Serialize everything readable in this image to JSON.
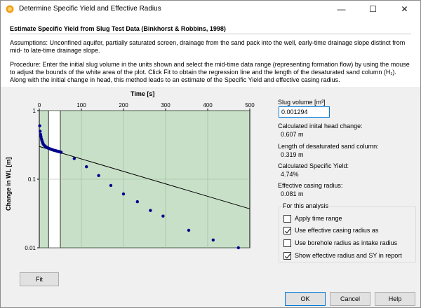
{
  "window": {
    "title": "Determine Specific Yield and Effective Radius",
    "controls": {
      "minimize": "—",
      "maximize": "☐",
      "close": "✕"
    }
  },
  "header": {
    "heading": "Estimate Specific Yield from Slug Test Data (Binkhorst & Robbins, 1998)",
    "assumptions": "Assumptions: Unconfined aquifer, partially saturated screen, drainage from the sand pack into the well, early-time drainage slope distinct from mid- to late-time drainage slope.",
    "procedure": "Procedure: Enter the initial slug volume in the units shown and select the mid-time data range (representing formation flow) by using the mouse to adjust the bounds of the white area of the plot. Click Fit to obtain the regression line and the length of the desaturated sand column (H₁). Along with the initial change in head, this method leads to an estimate of the Specific Yield and effective casing radius."
  },
  "chart_data": {
    "type": "scatter",
    "xlabel": "Time [s]",
    "ylabel": "Change in WL [m]",
    "xlim": [
      0,
      500
    ],
    "ylim": [
      0.01,
      1
    ],
    "y_scale": "log",
    "x_ticks": [
      "0",
      "100",
      "200",
      "300",
      "400",
      "500"
    ],
    "y_ticks": [
      "1",
      "0.1",
      "0.01"
    ],
    "background_color": "#c8e0c8",
    "selection_range": [
      22,
      50
    ],
    "point_color": "#00008b",
    "line_color": "#000000",
    "points": [
      {
        "x": 1,
        "y": 0.6
      },
      {
        "x": 2,
        "y": 0.5
      },
      {
        "x": 3,
        "y": 0.45
      },
      {
        "x": 4,
        "y": 0.42
      },
      {
        "x": 5,
        "y": 0.39
      },
      {
        "x": 6,
        "y": 0.37
      },
      {
        "x": 7,
        "y": 0.355
      },
      {
        "x": 8,
        "y": 0.34
      },
      {
        "x": 9,
        "y": 0.33
      },
      {
        "x": 10,
        "y": 0.32
      },
      {
        "x": 12,
        "y": 0.31
      },
      {
        "x": 14,
        "y": 0.302
      },
      {
        "x": 16,
        "y": 0.296
      },
      {
        "x": 18,
        "y": 0.29
      },
      {
        "x": 20,
        "y": 0.286
      },
      {
        "x": 22,
        "y": 0.282
      },
      {
        "x": 24,
        "y": 0.279
      },
      {
        "x": 26,
        "y": 0.276
      },
      {
        "x": 28,
        "y": 0.273
      },
      {
        "x": 30,
        "y": 0.27
      },
      {
        "x": 32,
        "y": 0.268
      },
      {
        "x": 34,
        "y": 0.265
      },
      {
        "x": 36,
        "y": 0.263
      },
      {
        "x": 38,
        "y": 0.261
      },
      {
        "x": 40,
        "y": 0.259
      },
      {
        "x": 42,
        "y": 0.257
      },
      {
        "x": 44,
        "y": 0.255
      },
      {
        "x": 46,
        "y": 0.253
      },
      {
        "x": 48,
        "y": 0.251
      },
      {
        "x": 50,
        "y": 0.249
      },
      {
        "x": 52,
        "y": 0.247
      },
      {
        "x": 83,
        "y": 0.2
      },
      {
        "x": 112,
        "y": 0.152
      },
      {
        "x": 141,
        "y": 0.113
      },
      {
        "x": 170,
        "y": 0.081
      },
      {
        "x": 200,
        "y": 0.061
      },
      {
        "x": 233,
        "y": 0.047
      },
      {
        "x": 264,
        "y": 0.035
      },
      {
        "x": 294,
        "y": 0.029
      },
      {
        "x": 355,
        "y": 0.018
      },
      {
        "x": 413,
        "y": 0.013
      },
      {
        "x": 473,
        "y": 0.01
      }
    ],
    "regression_line": [
      {
        "x": 0,
        "y": 0.3
      },
      {
        "x": 500,
        "y": 0.037
      }
    ]
  },
  "results": {
    "slug_volume_label": "Slug volume [m³]",
    "slug_volume_value": "0.001294",
    "head_change_label": "Calculated inital head change:",
    "head_change_value": "0.607 m",
    "desat_label": "Length of desaturated sand column:",
    "desat_value": "0.319 m",
    "sy_label": "Calculated Specific Yield:",
    "sy_value": "4.74%",
    "radius_label": "Effective casing radius:",
    "radius_value": "0.081 m"
  },
  "analysis": {
    "group_label": "For this analysis",
    "options": [
      {
        "label": "Apply time range",
        "checked": false
      },
      {
        "label": "Use effective casing radius as",
        "checked": true
      },
      {
        "label": "Use borehole radius as intake radius",
        "checked": false
      },
      {
        "label": "Show effective radius and SY in report",
        "checked": true
      }
    ]
  },
  "buttons": {
    "fit": "Fit",
    "ok": "OK",
    "cancel": "Cancel",
    "help": "Help"
  }
}
